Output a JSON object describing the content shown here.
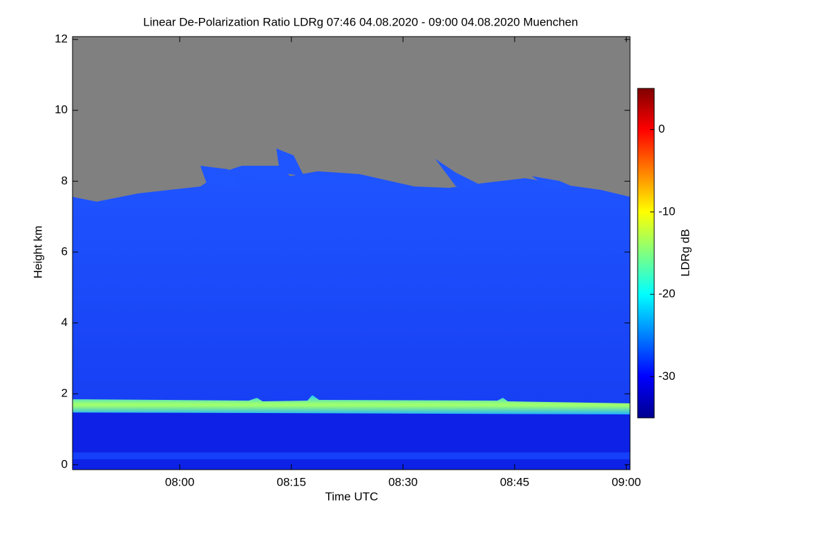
{
  "chart_data": {
    "type": "heatmap",
    "title": "Linear De-Polarization Ratio LDRg   07:46 04.08.2020 - 09:00 04.08.2020 Muenchen",
    "x_label": "Time UTC",
    "y_label": "Height km",
    "xlim": [
      465.6,
      540.5
    ],
    "xticks": [
      {
        "value": 480,
        "label": "08:00"
      },
      {
        "value": 495,
        "label": "08:15"
      },
      {
        "value": 510,
        "label": "08:30"
      },
      {
        "value": 525,
        "label": "08:45"
      },
      {
        "value": 540,
        "label": "09:00"
      }
    ],
    "ylim": [
      -0.14,
      12.08
    ],
    "yticks": [
      0,
      2,
      4,
      6,
      8,
      10,
      12
    ],
    "colorbar_label": "LDRg dB",
    "clim": [
      -35,
      5
    ],
    "cticks": [
      0,
      -10,
      -20,
      -30
    ],
    "colormap": "jet"
  }
}
